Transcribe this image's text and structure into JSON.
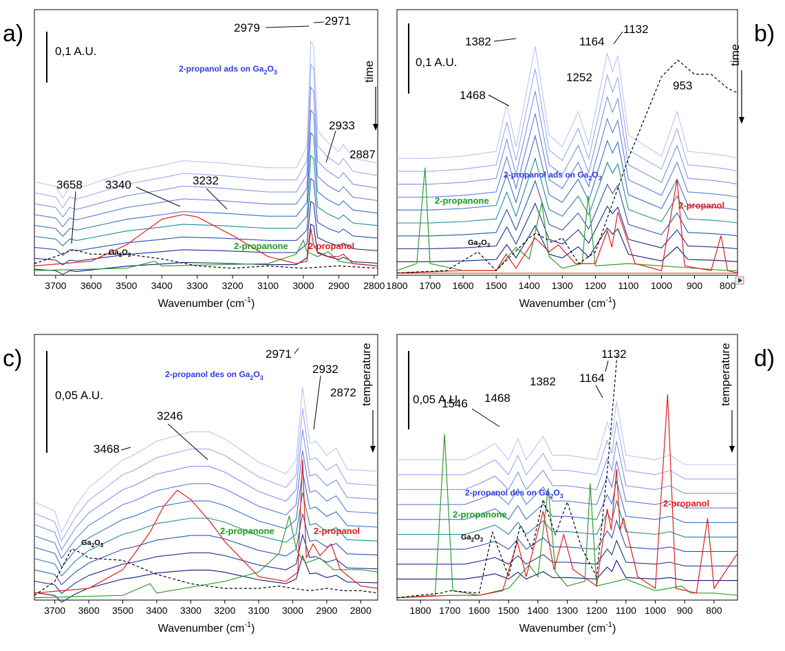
{
  "colors": {
    "blue_light": "#9aa8f0",
    "blue_mid": "#3a6fc8",
    "teal": "#1a8a9a",
    "navy": "#0a1a7a",
    "red": "#e21b1b",
    "green": "#2e9c2e",
    "black_dash": "#000000"
  },
  "chart_data": [
    {
      "panel": "a)",
      "type": "line",
      "xlabel": "Wavenumber (cm",
      "xlabel_sup": "-1",
      "xlabel_end": ")",
      "xlim": [
        3760,
        2790
      ],
      "xticks": [
        "3700",
        "3600",
        "3500",
        "3400",
        "3300",
        "3200",
        "3100",
        "3000",
        "2900",
        "2800"
      ],
      "scale_bar": "0,1 A.U.",
      "direction": "time",
      "peak_labels": [
        "2979",
        "2971",
        "2933",
        "2887",
        "3658",
        "3340",
        "3232"
      ],
      "series": [
        {
          "name": "2-propanol ads on Ga2O3",
          "label_main": "2-propanol ads on Ga",
          "label_sub": "2",
          "label_mid": "O",
          "label_sub2": "3",
          "x": [
            3760,
            3700,
            3680,
            3660,
            3640,
            3600,
            3500,
            3400,
            3340,
            3232,
            3100,
            3020,
            2990,
            2979,
            2971,
            2960,
            2933,
            2900,
            2887,
            2860,
            2790
          ],
          "y": [
            0.4,
            0.38,
            0.33,
            0.38,
            0.37,
            0.39,
            0.44,
            0.47,
            0.49,
            0.48,
            0.46,
            0.46,
            0.55,
            1.0,
            0.98,
            0.62,
            0.57,
            0.53,
            0.56,
            0.5,
            0.48
          ]
        },
        {
          "name": "2-propanone",
          "x": [
            3760,
            3500,
            3420,
            3400,
            3100,
            3020,
            3000,
            2990,
            2960,
            2930,
            2900,
            2860,
            2790
          ],
          "y": [
            0.02,
            0.03,
            0.06,
            0.04,
            0.05,
            0.09,
            0.15,
            0.1,
            0.08,
            0.1,
            0.06,
            0.05,
            0.04
          ]
        },
        {
          "name": "2-propanol",
          "x": [
            3760,
            3600,
            3500,
            3400,
            3340,
            3300,
            3200,
            3100,
            3020,
            2990,
            2979,
            2971,
            2960,
            2930,
            2900,
            2887,
            2860,
            2790
          ],
          "y": [
            0.04,
            0.06,
            0.13,
            0.24,
            0.26,
            0.25,
            0.17,
            0.08,
            0.05,
            0.06,
            0.2,
            0.13,
            0.1,
            0.08,
            0.08,
            0.09,
            0.05,
            0.04
          ]
        },
        {
          "name": "Ga2O3",
          "x": [
            3760,
            3700,
            3650,
            3600,
            3500,
            3400,
            3300,
            3200,
            3100,
            3000,
            2900,
            2790
          ],
          "y": [
            0.05,
            0.08,
            0.11,
            0.09,
            0.09,
            0.07,
            0.04,
            0.03,
            0.04,
            0.03,
            0.04,
            0.03
          ]
        }
      ]
    },
    {
      "panel": "b)",
      "type": "line",
      "xlabel": "Wavenumber (cm",
      "xlabel_sup": "-1",
      "xlabel_end": ")",
      "xlim": [
        1800,
        770
      ],
      "xticks": [
        "1800",
        "1700",
        "1600",
        "1500",
        "1400",
        "1300",
        "1200",
        "1100",
        "1000",
        "900",
        "800"
      ],
      "scale_bar": "0,1 A.U.",
      "direction": "time",
      "peak_labels": [
        "1382",
        "1164",
        "1132",
        "1468",
        "1252",
        "953"
      ],
      "series": [
        {
          "name": "2-propanol ads on Ga2O3",
          "x": [
            1800,
            1700,
            1600,
            1500,
            1468,
            1440,
            1382,
            1340,
            1300,
            1252,
            1220,
            1164,
            1148,
            1132,
            1100,
            1000,
            953,
            920,
            850,
            800,
            770
          ],
          "y": [
            0.5,
            0.5,
            0.51,
            0.53,
            0.73,
            0.55,
            0.98,
            0.6,
            0.55,
            0.7,
            0.56,
            0.95,
            0.87,
            0.94,
            0.6,
            0.51,
            0.7,
            0.53,
            0.52,
            0.51,
            0.5
          ]
        },
        {
          "name": "2-propanone",
          "x": [
            1800,
            1740,
            1715,
            1700,
            1600,
            1500,
            1440,
            1400,
            1362,
            1340,
            1300,
            1240,
            1222,
            1200,
            1100,
            900,
            800,
            770
          ],
          "y": [
            0.02,
            0.05,
            0.46,
            0.05,
            0.02,
            0.02,
            0.12,
            0.07,
            0.31,
            0.08,
            0.03,
            0.05,
            0.34,
            0.04,
            0.05,
            0.03,
            0.02,
            0.02
          ]
        },
        {
          "name": "2-propanol",
          "x": [
            1800,
            1600,
            1500,
            1470,
            1440,
            1382,
            1340,
            1312,
            1260,
            1200,
            1164,
            1150,
            1132,
            1115,
            1080,
            1000,
            953,
            930,
            850,
            820,
            800,
            770
          ],
          "y": [
            0.01,
            0.02,
            0.02,
            0.09,
            0.03,
            0.16,
            0.1,
            0.13,
            0.05,
            0.05,
            0.19,
            0.12,
            0.27,
            0.2,
            0.05,
            0.02,
            0.41,
            0.04,
            0.02,
            0.17,
            0.02,
            0.01
          ]
        },
        {
          "name": "Ga2O3",
          "x": [
            1800,
            1650,
            1555,
            1500,
            1400,
            1380,
            1330,
            1300,
            1250,
            1200,
            1100,
            1000,
            950,
            900,
            850,
            800,
            770
          ],
          "y": [
            0.01,
            0.02,
            0.1,
            0.02,
            0.16,
            0.18,
            0.14,
            0.16,
            0.05,
            0.1,
            0.5,
            0.85,
            0.92,
            0.86,
            0.86,
            0.8,
            0.78
          ]
        }
      ]
    },
    {
      "panel": "c)",
      "type": "line",
      "xlabel": "Wavenumber (cm",
      "xlabel_sup": "-1",
      "xlabel_end": ")",
      "xlim": [
        3760,
        2750
      ],
      "xticks": [
        "3700",
        "3600",
        "3500",
        "3400",
        "3300",
        "3200",
        "3100",
        "3000",
        "2900",
        "2800"
      ],
      "scale_bar": "0,05 A.U.",
      "direction": "temperature",
      "peak_labels": [
        "2971",
        "2932",
        "2872",
        "3246",
        "3468"
      ],
      "series": [
        {
          "name": "2-propanol des on Ga2O3",
          "x": [
            3760,
            3700,
            3680,
            3640,
            3600,
            3500,
            3468,
            3400,
            3300,
            3246,
            3200,
            3100,
            3020,
            2990,
            2971,
            2950,
            2932,
            2900,
            2872,
            2840,
            2750
          ],
          "y": [
            0.42,
            0.38,
            0.29,
            0.4,
            0.48,
            0.6,
            0.62,
            0.68,
            0.72,
            0.72,
            0.69,
            0.59,
            0.54,
            0.6,
            0.91,
            0.67,
            0.68,
            0.62,
            0.65,
            0.56,
            0.55
          ]
        },
        {
          "name": "2-propanone",
          "x": [
            3760,
            3500,
            3420,
            3400,
            3200,
            3100,
            3040,
            3010,
            2990,
            2975,
            2960,
            2920,
            2880,
            2800,
            2750
          ],
          "y": [
            0.01,
            0.02,
            0.07,
            0.03,
            0.08,
            0.12,
            0.2,
            0.36,
            0.22,
            0.18,
            0.16,
            0.18,
            0.13,
            0.13,
            0.12
          ]
        },
        {
          "name": "2-propanol",
          "x": [
            3760,
            3600,
            3500,
            3420,
            3380,
            3340,
            3300,
            3240,
            3200,
            3100,
            3020,
            2985,
            2971,
            2960,
            2940,
            2920,
            2887,
            2860,
            2800,
            2750
          ],
          "y": [
            0.03,
            0.05,
            0.13,
            0.29,
            0.4,
            0.47,
            0.43,
            0.33,
            0.25,
            0.1,
            0.08,
            0.12,
            0.6,
            0.18,
            0.24,
            0.19,
            0.24,
            0.13,
            0.06,
            0.05
          ]
        },
        {
          "name": "Ga2O3",
          "x": [
            3760,
            3700,
            3650,
            3620,
            3600,
            3500,
            3400,
            3300,
            3200,
            3100,
            3040,
            3000,
            2950,
            2900,
            2850,
            2800,
            2750
          ],
          "y": [
            0.02,
            0.08,
            0.22,
            0.2,
            0.18,
            0.17,
            0.11,
            0.07,
            0.05,
            0.05,
            0.06,
            0.05,
            0.04,
            0.05,
            0.04,
            0.04,
            0.03
          ]
        }
      ]
    },
    {
      "panel": "d)",
      "type": "line",
      "xlabel": "Wavenumber (cm",
      "xlabel_sup": "-1",
      "xlabel_end": ")",
      "xlim": [
        1880,
        720
      ],
      "xticks": [
        "1800",
        "1700",
        "1600",
        "1500",
        "1400",
        "1300",
        "1200",
        "1100",
        "1000",
        "900",
        "800"
      ],
      "scale_bar": "0,05 A.U.",
      "direction": "temperature",
      "peak_labels": [
        "1132",
        "1164",
        "1382",
        "1468",
        "1546"
      ],
      "series": [
        {
          "name": "2-propanol des on Ga2O3",
          "x": [
            1880,
            1750,
            1650,
            1600,
            1546,
            1500,
            1468,
            1440,
            1382,
            1350,
            1300,
            1250,
            1200,
            1164,
            1148,
            1132,
            1100,
            1000,
            950,
            900,
            800,
            720
          ],
          "y": [
            0.6,
            0.6,
            0.6,
            0.63,
            0.67,
            0.6,
            0.69,
            0.6,
            0.7,
            0.62,
            0.62,
            0.61,
            0.6,
            0.76,
            0.7,
            0.85,
            0.62,
            0.6,
            0.62,
            0.58,
            0.58,
            0.58
          ]
        },
        {
          "name": "2-propanone",
          "x": [
            1880,
            1750,
            1718,
            1690,
            1600,
            1500,
            1430,
            1400,
            1365,
            1340,
            1300,
            1240,
            1222,
            1200,
            1100,
            1000,
            910,
            880,
            800,
            720
          ],
          "y": [
            0.01,
            0.02,
            0.71,
            0.04,
            0.02,
            0.05,
            0.15,
            0.1,
            0.48,
            0.12,
            0.06,
            0.08,
            0.5,
            0.06,
            0.09,
            0.04,
            0.06,
            0.03,
            0.03,
            0.02
          ]
        },
        {
          "name": "2-propanol",
          "x": [
            1880,
            1700,
            1600,
            1520,
            1470,
            1440,
            1382,
            1345,
            1312,
            1280,
            1200,
            1164,
            1150,
            1132,
            1120,
            1108,
            1060,
            1000,
            958,
            930,
            860,
            822,
            800,
            720
          ],
          "y": [
            0.01,
            0.02,
            0.02,
            0.04,
            0.25,
            0.1,
            0.38,
            0.13,
            0.28,
            0.13,
            0.06,
            0.39,
            0.3,
            0.56,
            0.3,
            0.35,
            0.1,
            0.05,
            0.88,
            0.05,
            0.03,
            0.35,
            0.05,
            0.2
          ]
        },
        {
          "name": "Ga2O3",
          "x": [
            1880,
            1730,
            1700,
            1600,
            1555,
            1500,
            1460,
            1420,
            1382,
            1340,
            1300,
            1250,
            1200,
            1160,
            1140,
            1130
          ],
          "y": [
            0.01,
            0.03,
            0.04,
            0.03,
            0.29,
            0.1,
            0.32,
            0.22,
            0.43,
            0.28,
            0.42,
            0.22,
            0.1,
            0.6,
            0.9,
            1.05
          ]
        }
      ]
    }
  ],
  "panels": {
    "a": {
      "label": "a)",
      "scale": "0,1 A.U.",
      "direction": "time",
      "peaks": {
        "p2979": "2979",
        "p2971": "2971",
        "p2933": "2933",
        "p2887": "2887",
        "p3658": "3658",
        "p3340": "3340",
        "p3232": "3232"
      },
      "legend_blue_main": "2-propanol ads on Ga",
      "legend_sub1": "2",
      "legend_mid": "O",
      "legend_sub2": "3",
      "legend_green": "2-propanone",
      "legend_red": "2-propanol",
      "legend_black_main": "Ga",
      "legend_black_sub1": "2",
      "legend_black_mid": "O",
      "legend_black_sub2": "3"
    },
    "b": {
      "label": "b)",
      "scale": "0,1 A.U.",
      "direction": "time",
      "peaks": {
        "p1382": "1382",
        "p1164": "1164",
        "p1132": "1132",
        "p1468": "1468",
        "p1252": "1252",
        "p953": "953"
      },
      "legend_blue_main": "2-propanol ads on Ga",
      "legend_green": "2-propanone",
      "legend_red": "2-propanol"
    },
    "c": {
      "label": "c)",
      "scale": "0,05 A.U.",
      "direction": "temperature",
      "peaks": {
        "p2971": "2971",
        "p2932": "2932",
        "p2872": "2872",
        "p3246": "3246",
        "p3468": "3468"
      },
      "legend_blue_main": "2-propanol des on Ga",
      "legend_green": "2-propanone",
      "legend_red": "2-propanol"
    },
    "d": {
      "label": "d)",
      "scale": "0,05 A.U.",
      "direction": "temperature",
      "peaks": {
        "p1132": "1132",
        "p1164": "1164",
        "p1382": "1382",
        "p1468": "1468",
        "p1546": "1546"
      },
      "legend_blue_main": "2-propanol des on Ga",
      "legend_green": "2-propanone",
      "legend_red": "2-propanol"
    }
  }
}
